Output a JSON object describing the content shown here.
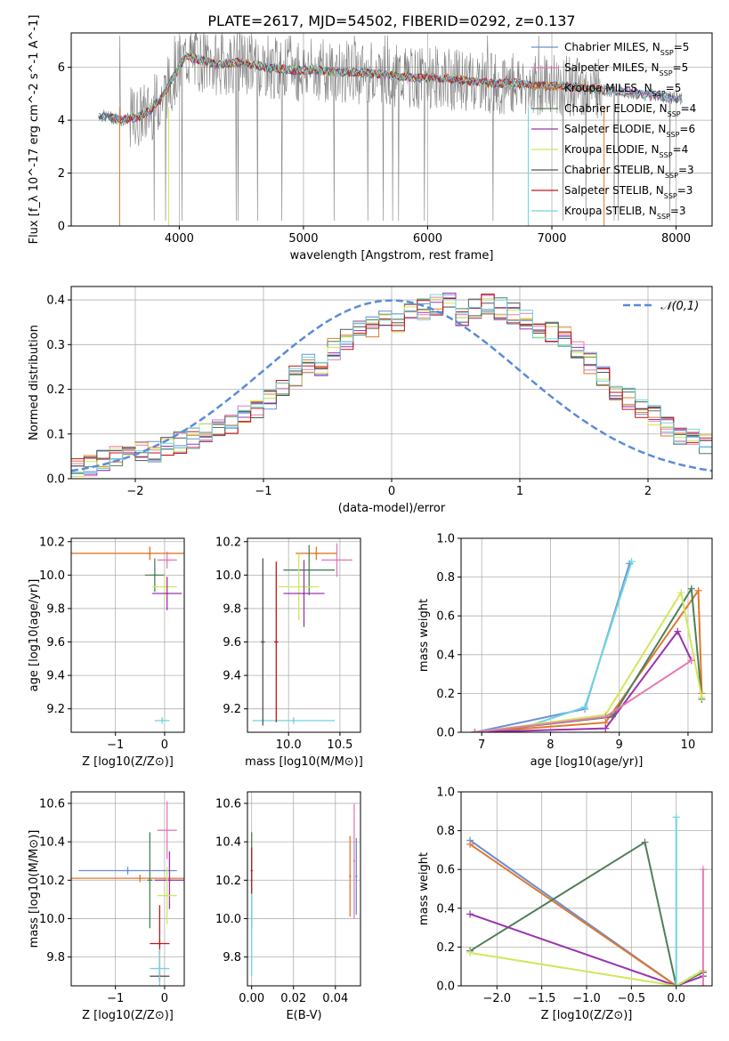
{
  "figure": {
    "title": "PLATE=2617, MJD=54502, FIBERID=0292, z=0.137"
  },
  "series_styles": [
    {
      "name": "Chabrier MILES",
      "nssp": "5",
      "color": "#6a8fd8"
    },
    {
      "name": "Salpeter MILES",
      "nssp": "5",
      "color": "#e57bb2"
    },
    {
      "name": "Kroupa MILES",
      "nssp": "5",
      "color": "#e0782c"
    },
    {
      "name": "Chabrier ELODIE",
      "nssp": "4",
      "color": "#4f7f5a"
    },
    {
      "name": "Salpeter ELODIE",
      "nssp": "6",
      "color": "#9a34b0"
    },
    {
      "name": "Kroupa ELODIE",
      "nssp": "4",
      "color": "#cfe85c"
    },
    {
      "name": "Chabrier STELIB",
      "nssp": "3",
      "color": "#555555"
    },
    {
      "name": "Salpeter STELIB",
      "nssp": "3",
      "color": "#c0191b"
    },
    {
      "name": "Kroupa STELIB",
      "nssp": "3",
      "color": "#6fd6e0"
    }
  ],
  "chart_data": [
    {
      "id": "spectrum",
      "type": "line",
      "xlabel": "wavelength [Angstrom, rest frame]",
      "ylabel": "Flux [f_λ 10^-17 erg cm^-2 s^-1 A^-1]",
      "xlim": [
        3130,
        8290
      ],
      "ylim": [
        0,
        7.3
      ],
      "xticks": [
        4000,
        5000,
        6000,
        7000,
        8000
      ],
      "yticks": [
        0,
        2,
        4,
        6
      ],
      "legend_placement": "right",
      "continuum": {
        "x": [
          3350,
          3450,
          3550,
          3650,
          3750,
          3850,
          3950,
          4050,
          4150,
          4300,
          4500,
          4700,
          4900,
          5100,
          5300,
          5500,
          5700,
          5900,
          6100,
          6300,
          6500,
          6700,
          6900,
          7100,
          7300,
          7500,
          7700,
          7900,
          8050
        ],
        "y": [
          4.2,
          4.1,
          4.0,
          4.1,
          4.3,
          4.8,
          5.6,
          6.4,
          6.3,
          6.1,
          6.2,
          6.0,
          5.9,
          5.9,
          5.8,
          5.8,
          5.7,
          5.6,
          5.6,
          5.5,
          5.4,
          5.4,
          5.3,
          5.3,
          5.2,
          5.1,
          5.0,
          4.9,
          4.8
        ]
      }
    },
    {
      "id": "residuals",
      "type": "bar",
      "xlabel": "(data-model)/error",
      "ylabel": "Normed distribution",
      "xlim": [
        -2.5,
        2.5
      ],
      "ylim": [
        0,
        0.43
      ],
      "xticks": [
        -2,
        -1,
        0,
        1,
        2
      ],
      "yticks": [
        0.0,
        0.1,
        0.2,
        0.3,
        0.4
      ],
      "legend": "𝒩(0,1)",
      "legend_placement": "top-right",
      "bin_width": 0.1,
      "mean_hist": [
        0.02,
        0.03,
        0.04,
        0.05,
        0.05,
        0.06,
        0.06,
        0.07,
        0.08,
        0.09,
        0.1,
        0.11,
        0.12,
        0.14,
        0.16,
        0.18,
        0.2,
        0.23,
        0.26,
        0.25,
        0.29,
        0.31,
        0.33,
        0.34,
        0.36,
        0.35,
        0.37,
        0.38,
        0.39,
        0.4,
        0.36,
        0.38,
        0.39,
        0.38,
        0.37,
        0.36,
        0.34,
        0.33,
        0.32,
        0.29,
        0.26,
        0.23,
        0.2,
        0.18,
        0.16,
        0.14,
        0.12,
        0.1,
        0.09,
        0.08
      ]
    },
    {
      "id": "age_vs_Z",
      "type": "scatter",
      "xlabel": "Z [log10(Z/Z⊙)]",
      "ylabel": "age [log10(age/yr)]",
      "xlim": [
        -1.9,
        0.4
      ],
      "ylim": [
        9.06,
        10.22
      ],
      "xticks": [
        -1,
        0
      ],
      "yticks": [
        9.2,
        9.4,
        9.6,
        9.8,
        10.0,
        10.2
      ],
      "points": [
        {
          "x": -0.3,
          "y": 10.13,
          "xerr": 1.6,
          "yerr": 0.04,
          "series": 2
        },
        {
          "x": 0.05,
          "y": 10.09,
          "xerr": 0.2,
          "yerr": 0.05,
          "series": 1
        },
        {
          "x": -0.2,
          "y": 10.0,
          "xerr": 0.2,
          "yerr": 0.1,
          "series": 3
        },
        {
          "x": 0.0,
          "y": 9.93,
          "xerr": 0.25,
          "yerr": 0.07,
          "series": 5
        },
        {
          "x": 0.05,
          "y": 9.89,
          "xerr": 0.3,
          "yerr": 0.1,
          "series": 4
        },
        {
          "x": -0.05,
          "y": 9.13,
          "xerr": 0.15,
          "yerr": 0.02,
          "series": 8
        }
      ]
    },
    {
      "id": "age_vs_mass",
      "type": "scatter",
      "xlabel": "mass [log10(M/M⊙)]",
      "ylabel": "",
      "xlim": [
        9.6,
        10.7
      ],
      "ylim": [
        9.06,
        10.22
      ],
      "xticks": [
        10.0,
        10.5
      ],
      "yticks": [
        9.2,
        9.4,
        9.6,
        9.8,
        10.0,
        10.2
      ],
      "points": [
        {
          "x": 10.27,
          "y": 10.13,
          "xerr": 0.2,
          "yerr": 0.04,
          "series": 2
        },
        {
          "x": 10.47,
          "y": 10.09,
          "xerr": 0.15,
          "yerr": 0.1,
          "series": 1
        },
        {
          "x": 10.2,
          "y": 10.03,
          "xerr": 0.25,
          "yerr": 0.15,
          "series": 3
        },
        {
          "x": 10.1,
          "y": 9.93,
          "xerr": 0.2,
          "yerr": 0.2,
          "series": 5
        },
        {
          "x": 10.15,
          "y": 9.89,
          "xerr": 0.2,
          "yerr": 0.2,
          "series": 4
        },
        {
          "x": 10.05,
          "y": 9.13,
          "xerr": 0.4,
          "yerr": 0.02,
          "series": 8
        },
        {
          "x": 9.75,
          "y": 9.6,
          "xerr": 0.02,
          "yerr": 0.5,
          "series": 6
        },
        {
          "x": 9.88,
          "y": 9.6,
          "xerr": 0.02,
          "yerr": 0.48,
          "series": 7
        }
      ]
    },
    {
      "id": "weight_vs_age",
      "type": "line",
      "xlabel": "age [log10(age/yr)]",
      "ylabel": "mass weight",
      "xlim": [
        6.7,
        10.35
      ],
      "ylim": [
        0,
        1.0
      ],
      "xticks": [
        7,
        8,
        9,
        10
      ],
      "yticks": [
        0.0,
        0.2,
        0.4,
        0.6,
        0.8,
        1.0
      ],
      "series": [
        {
          "series": 0,
          "x": [
            6.9,
            8.5,
            9.15
          ],
          "y": [
            0.0,
            0.12,
            0.87
          ]
        },
        {
          "series": 8,
          "x": [
            7.5,
            8.5,
            9.18
          ],
          "y": [
            0.01,
            0.13,
            0.88
          ]
        },
        {
          "series": 2,
          "x": [
            6.9,
            8.8,
            10.15,
            10.2
          ],
          "y": [
            0.0,
            0.05,
            0.73,
            0.2
          ]
        },
        {
          "series": 3,
          "x": [
            6.9,
            8.9,
            10.05,
            10.2
          ],
          "y": [
            0.0,
            0.08,
            0.74,
            0.17
          ]
        },
        {
          "series": 5,
          "x": [
            6.9,
            8.8,
            9.9,
            10.2
          ],
          "y": [
            0.0,
            0.09,
            0.72,
            0.18
          ]
        },
        {
          "series": 4,
          "x": [
            6.9,
            8.8,
            9.85,
            10.05
          ],
          "y": [
            0.0,
            0.02,
            0.52,
            0.37
          ]
        },
        {
          "series": 1,
          "x": [
            6.9,
            8.8,
            10.05
          ],
          "y": [
            0.0,
            0.08,
            0.37
          ]
        }
      ]
    },
    {
      "id": "mass_vs_Z",
      "type": "scatter",
      "xlabel": "Z [log10(Z/Z⊙)]",
      "ylabel": "mass [log10(M/M⊙)]",
      "xlim": [
        -1.9,
        0.4
      ],
      "ylim": [
        9.65,
        10.66
      ],
      "xticks": [
        -1,
        0
      ],
      "yticks": [
        9.8,
        10.0,
        10.2,
        10.4,
        10.6
      ],
      "points": [
        {
          "x": -0.75,
          "y": 10.25,
          "xerr": 1.0,
          "yerr": 0.02,
          "series": 0
        },
        {
          "x": 0.05,
          "y": 10.46,
          "xerr": 0.2,
          "yerr": 0.15,
          "series": 1
        },
        {
          "x": -0.5,
          "y": 10.21,
          "xerr": 1.4,
          "yerr": 0.02,
          "series": 2
        },
        {
          "x": -0.3,
          "y": 10.2,
          "xerr": 0.05,
          "yerr": 0.25,
          "series": 3
        },
        {
          "x": 0.1,
          "y": 10.2,
          "xerr": 0.3,
          "yerr": 0.15,
          "series": 4
        },
        {
          "x": 0.05,
          "y": 10.12,
          "xerr": 0.2,
          "yerr": 0.15,
          "series": 5
        },
        {
          "x": -0.1,
          "y": 9.7,
          "xerr": 0.2,
          "yerr": 0.02,
          "series": 6
        },
        {
          "x": -0.1,
          "y": 9.87,
          "xerr": 0.2,
          "yerr": 0.2,
          "series": 7
        },
        {
          "x": -0.1,
          "y": 9.74,
          "xerr": 0.2,
          "yerr": 0.1,
          "series": 8
        }
      ]
    },
    {
      "id": "mass_vs_EBV",
      "type": "scatter",
      "xlabel": "E(B-V)",
      "ylabel": "",
      "xlim": [
        -0.002,
        0.052
      ],
      "ylim": [
        9.65,
        10.66
      ],
      "xticks": [
        0.0,
        0.02,
        0.04
      ],
      "yticks": [
        9.8,
        10.0,
        10.2,
        10.4,
        10.6
      ],
      "points": [
        {
          "x": 0.0,
          "y": 10.2,
          "xerr": 0,
          "yerr": 0.25,
          "series": 3
        },
        {
          "x": 0.0,
          "y": 10.0,
          "xerr": 0,
          "yerr": 0.3,
          "series": 8
        },
        {
          "x": 0.0,
          "y": 10.25,
          "xerr": 0,
          "yerr": 0.12,
          "series": 7
        },
        {
          "x": 0.047,
          "y": 10.22,
          "xerr": 0,
          "yerr": 0.21,
          "series": 2
        },
        {
          "x": 0.049,
          "y": 10.3,
          "xerr": 0,
          "yerr": 0.3,
          "series": 1
        },
        {
          "x": 0.05,
          "y": 10.22,
          "xerr": 0,
          "yerr": 0.2,
          "series": 0
        }
      ]
    },
    {
      "id": "weight_vs_Z",
      "type": "line",
      "xlabel": "Z [log10(Z/Z⊙)]",
      "ylabel": "mass weight",
      "xlim": [
        -2.4,
        0.4
      ],
      "ylim": [
        0,
        1.0
      ],
      "xticks": [
        -2.0,
        -1.5,
        -1.0,
        -0.5,
        0.0
      ],
      "yticks": [
        0.0,
        0.2,
        0.4,
        0.6,
        0.8,
        1.0
      ],
      "series": [
        {
          "series": 0,
          "x": [
            -2.3,
            0.0,
            0.3
          ],
          "y": [
            0.75,
            0.0,
            0.08
          ]
        },
        {
          "series": 2,
          "x": [
            -2.3,
            0.0,
            0.3
          ],
          "y": [
            0.73,
            0.0,
            0.07
          ]
        },
        {
          "series": 3,
          "x": [
            -2.3,
            -0.35,
            0.0,
            0.3
          ],
          "y": [
            0.18,
            0.74,
            0.0,
            0.07
          ]
        },
        {
          "series": 4,
          "x": [
            -2.3,
            0.0,
            0.3
          ],
          "y": [
            0.37,
            0.0,
            0.05
          ]
        },
        {
          "series": 5,
          "x": [
            -2.3,
            0.0,
            0.3
          ],
          "y": [
            0.17,
            0.0,
            0.08
          ]
        },
        {
          "series": 8,
          "x": [
            0.0,
            0.0
          ],
          "y": [
            0.0,
            0.87
          ]
        },
        {
          "series": 1,
          "x": [
            0.3,
            0.3
          ],
          "y": [
            0.0,
            0.6
          ]
        }
      ]
    }
  ]
}
